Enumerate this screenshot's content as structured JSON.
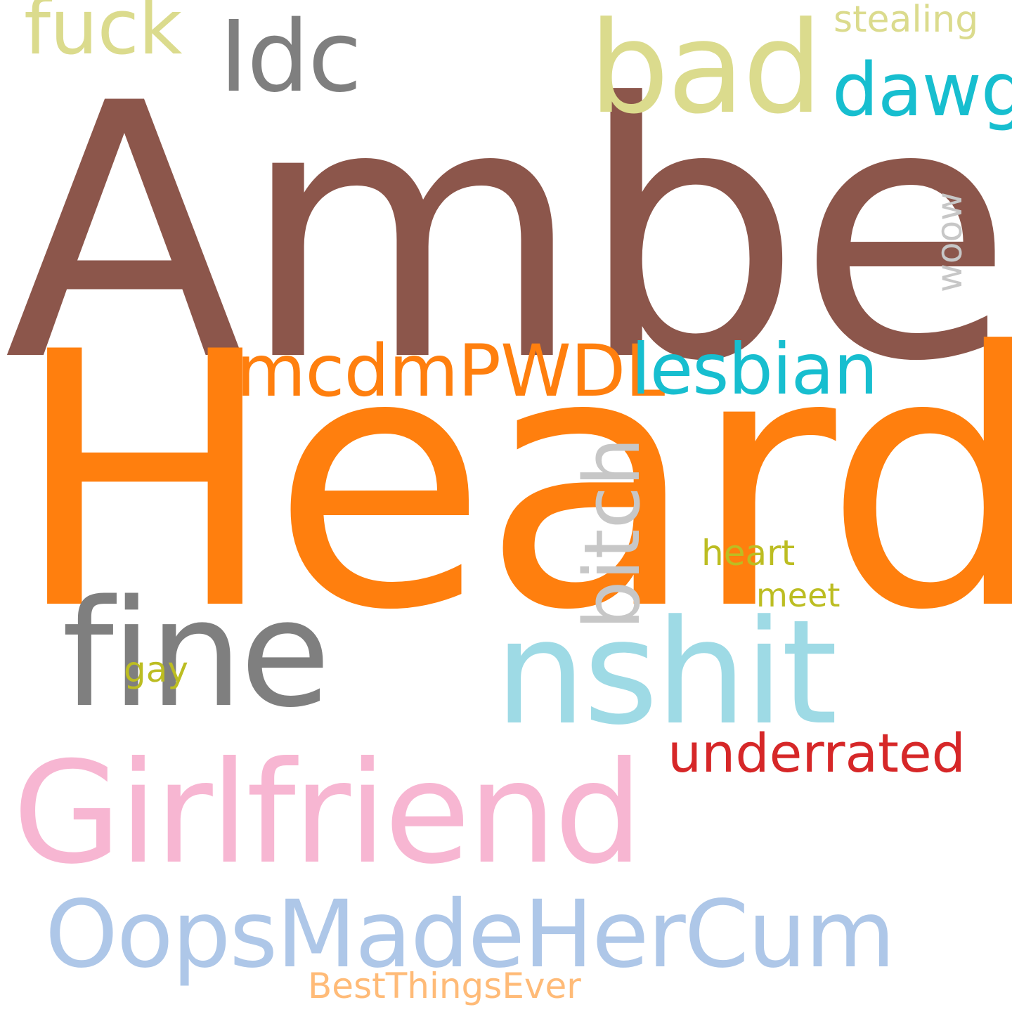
{
  "words": [
    {
      "id": "amber",
      "text": "Amber",
      "color": "#8c564b"
    },
    {
      "id": "heard",
      "text": "Heard",
      "color": "#ff7f0e"
    },
    {
      "id": "girlfriend",
      "text": "Girlfriend",
      "color": "#f7b6d2"
    },
    {
      "id": "fine",
      "text": "fine",
      "color": "#7f7f7f"
    },
    {
      "id": "nshit",
      "text": "nshit",
      "color": "#9edae5"
    },
    {
      "id": "oops",
      "text": "OopsMadeHerCum",
      "color": "#aec7e8"
    },
    {
      "id": "bad",
      "text": "bad",
      "color": "#dbdb8d"
    },
    {
      "id": "idc",
      "text": "Idc",
      "color": "#7f7f7f"
    },
    {
      "id": "fuck",
      "text": "fuck",
      "color": "#dbdb8d"
    },
    {
      "id": "dawg",
      "text": "dawg",
      "color": "#17becf"
    },
    {
      "id": "stealing",
      "text": "stealing",
      "color": "#dbdb8d"
    },
    {
      "id": "mcdm",
      "text": "mcdmPWDL",
      "color": "#ff7f0e"
    },
    {
      "id": "lesbian",
      "text": "lesbian",
      "color": "#17becf"
    },
    {
      "id": "bitch",
      "text": "bitch",
      "color": "#c7c7c7"
    },
    {
      "id": "woow",
      "text": "woow",
      "color": "#c7c7c7"
    },
    {
      "id": "underrated",
      "text": "underrated",
      "color": "#d62728"
    },
    {
      "id": "heart",
      "text": "heart",
      "color": "#bcbd22"
    },
    {
      "id": "meet",
      "text": "meet",
      "color": "#bcbd22"
    },
    {
      "id": "gay",
      "text": "gay",
      "color": "#bcbd22"
    },
    {
      "id": "best",
      "text": "BestThingsEver",
      "color": "#ffbb78"
    }
  ]
}
